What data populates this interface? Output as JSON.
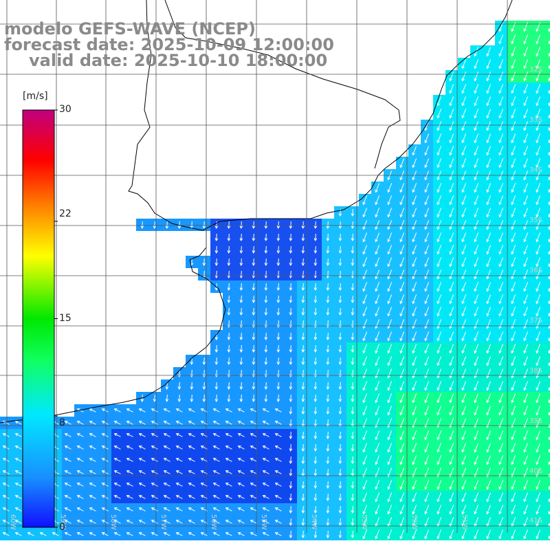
{
  "title": {
    "model": "modelo GEFS-WAVE (NCEP)",
    "forecast": "forecast date: 2025-10-09 12:00:00",
    "valid": "valid date: 2025-10-10 18:00:00"
  },
  "colorbar": {
    "unit": "[m/s]",
    "ticks": [
      "30",
      "22",
      "15",
      "8",
      "0"
    ],
    "tick_values": [
      30,
      22,
      15,
      8,
      0
    ],
    "min": 0,
    "max": 30,
    "colors": [
      "#1010ff",
      "#1890ff",
      "#00e8ff",
      "#10ff60",
      "#00e800",
      "#ffff00",
      "#ff8000",
      "#ff0000",
      "#c00080"
    ]
  },
  "lat_labels": [
    "32S",
    "33S",
    "34S",
    "35S",
    "36S",
    "37S",
    "38S",
    "39S",
    "40S",
    "41S"
  ],
  "lon_labels": [
    "60W",
    "59W",
    "58W",
    "57W",
    "56W",
    "55W",
    "54W",
    "53W",
    "52W",
    "51W"
  ],
  "colors": {
    "land": "#ffffff",
    "coast": "#000000",
    "grid": "#555555",
    "arrow": "#ffffff",
    "title": "#8a8a8a"
  }
}
